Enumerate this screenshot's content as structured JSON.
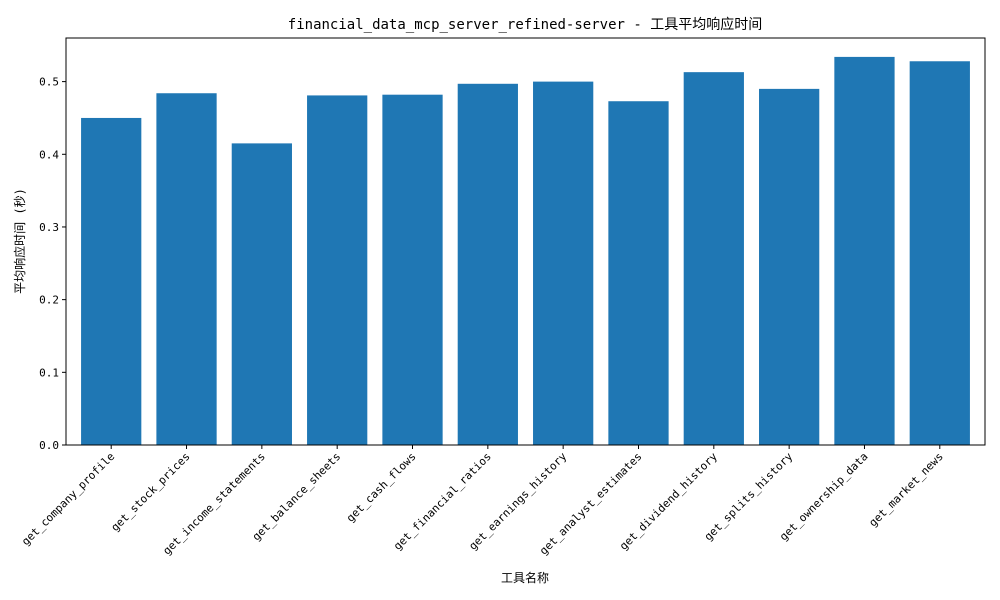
{
  "chart_data": {
    "type": "bar",
    "title": "financial_data_mcp_server_refined-server - 工具平均响应时间",
    "xlabel": "工具名称",
    "ylabel": "平均响应时间 (秒)",
    "categories": [
      "get_company_profile",
      "get_stock_prices",
      "get_income_statements",
      "get_balance_sheets",
      "get_cash_flows",
      "get_financial_ratios",
      "get_earnings_history",
      "get_analyst_estimates",
      "get_dividend_history",
      "get_splits_history",
      "get_ownership_data",
      "get_market_news"
    ],
    "values": [
      0.45,
      0.484,
      0.415,
      0.481,
      0.482,
      0.497,
      0.5,
      0.473,
      0.513,
      0.49,
      0.534,
      0.528
    ],
    "ylim": [
      0,
      0.56
    ],
    "yticks": [
      0.0,
      0.1,
      0.2,
      0.3,
      0.4,
      0.5
    ],
    "ytick_labels": [
      "0.0",
      "0.1",
      "0.2",
      "0.3",
      "0.4",
      "0.5"
    ],
    "grid": false,
    "bar_color": "#1f77b4"
  }
}
